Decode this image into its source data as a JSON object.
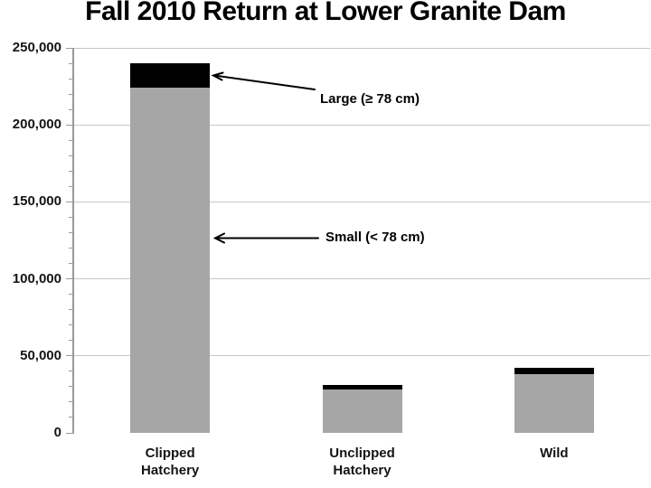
{
  "chart_data": {
    "type": "bar",
    "stacked": true,
    "title": "Fall 2010 Return at Lower Granite Dam",
    "categories": [
      "Clipped Hatchery",
      "Unclipped Hatchery",
      "Wild"
    ],
    "category_lines": [
      [
        "Clipped",
        "Hatchery"
      ],
      [
        "Unclipped",
        "Hatchery"
      ],
      [
        "Wild"
      ]
    ],
    "series": [
      {
        "name": "Small (< 78 cm)",
        "color": "#a6a6a6",
        "values": [
          224000,
          28000,
          38000
        ]
      },
      {
        "name": "Large (≥ 78 cm)",
        "color": "#000000",
        "values": [
          16000,
          3000,
          4500
        ]
      }
    ],
    "totals": [
      240000,
      31000,
      42500
    ],
    "ylim": [
      0,
      250000
    ],
    "yticks": [
      0,
      50000,
      100000,
      150000,
      200000,
      250000
    ],
    "ytick_labels": [
      "0",
      "50,000",
      "100,000",
      "150,000",
      "200,000",
      "250,000"
    ],
    "minor_tick_step": 10000,
    "grid": true,
    "legend_position": "none",
    "annotations": [
      {
        "text": "Large (≥ 78 cm)",
        "target": "clipped-hatchery black top segment"
      },
      {
        "text": "Small (< 78 cm)",
        "target": "clipped-hatchery gray segment"
      }
    ]
  },
  "colors": {
    "bar_small": "#a6a6a6",
    "bar_large": "#000000",
    "gridline": "#c6c6c6",
    "axis": "#9a9a9a",
    "text": "#000000",
    "background": "#ffffff"
  }
}
